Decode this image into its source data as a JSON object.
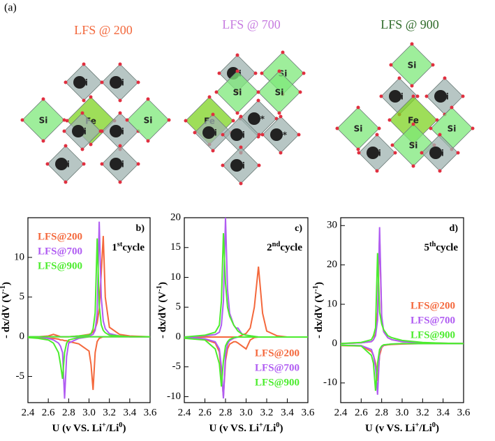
{
  "figure_label": "(a)",
  "structures": [
    {
      "title": "LFS @ 200",
      "atoms": [
        "Li",
        "Li",
        "Si",
        "Fe",
        "Li",
        "Li",
        "Si",
        "Li",
        "Li"
      ]
    },
    {
      "title": "LFS @ 700",
      "atoms": [
        "Li",
        "Si",
        "Si",
        "Si",
        "Fe",
        "Li*",
        "Li",
        "Li",
        "Li*",
        "Li"
      ]
    },
    {
      "title": "LFS @ 900",
      "atoms": [
        "Si",
        "Li",
        "Li",
        "Si",
        "Fe",
        "Si",
        "Si",
        "Li",
        "Li"
      ]
    }
  ],
  "chart_data": [
    {
      "type": "line",
      "panel": "b)",
      "annotation": [
        "1",
        "st",
        "cycle"
      ],
      "legend": "upper left",
      "xlabel": [
        "U (v VS. Li",
        "+",
        "/Li",
        "0",
        ")"
      ],
      "ylabel": [
        "- dx/dV (V",
        "-1",
        ")"
      ],
      "xlim": [
        2.4,
        3.6
      ],
      "xticks": [
        2.4,
        2.6,
        2.8,
        {
          "value": 3,
          "label": "3.0"
        },
        3.2,
        3.4,
        3.6
      ],
      "ylim": [
        -8.3,
        15
      ],
      "yticks": [
        -5,
        0,
        5,
        10
      ],
      "x": [
        2.4,
        2.5,
        2.6,
        2.65,
        2.7,
        2.72,
        2.74,
        2.76,
        2.78,
        2.8,
        2.9,
        3.0,
        3.02,
        3.04,
        3.06,
        3.08,
        3.1,
        3.12,
        3.14,
        3.16,
        3.2,
        3.3,
        3.4,
        3.6
      ],
      "series": [
        {
          "name": "LFS@200",
          "color": "#f4683c",
          "values": [
            0,
            0,
            0.1,
            0.3,
            0.1,
            0,
            0,
            0,
            0,
            0,
            0.1,
            0.3,
            0.4,
            0.6,
            1,
            1.8,
            3.5,
            8,
            12.7,
            5,
            1.2,
            0.3,
            0.1,
            0
          ],
          "discharge": [
            -0.1,
            -0.1,
            -0.2,
            -0.2,
            -0.3,
            -0.4,
            -0.4,
            -0.5,
            -0.5,
            -0.6,
            -0.9,
            -1.8,
            -3.5,
            -6.7,
            -2,
            -0.6,
            -0.2,
            -0.1,
            0,
            0,
            0,
            0,
            0,
            0
          ]
        },
        {
          "name": "LFS@700",
          "color": "#b05cf2",
          "values": [
            0,
            0,
            0,
            0,
            0,
            0,
            0,
            0,
            0,
            0,
            0,
            0.1,
            0.2,
            0.3,
            0.8,
            3,
            14.5,
            5,
            2,
            1,
            0.4,
            0.1,
            0,
            0
          ],
          "discharge": [
            0,
            0,
            -0.2,
            -0.4,
            -0.8,
            -1.2,
            -2,
            -7.8,
            -2.5,
            -0.8,
            -0.2,
            0,
            0,
            0,
            0,
            0,
            0,
            0,
            0,
            0,
            0,
            0,
            0,
            0
          ]
        },
        {
          "name": "LFS@900",
          "color": "#4cec2e",
          "values": [
            0,
            0,
            0,
            0,
            0,
            0,
            0,
            0,
            0,
            0,
            0.1,
            0.2,
            0.4,
            1,
            3,
            12.4,
            4,
            1.5,
            0.8,
            0.5,
            0.2,
            0.1,
            0,
            0
          ],
          "discharge": [
            -0.1,
            -0.2,
            -0.4,
            -0.8,
            -2,
            -3.5,
            -5.3,
            -2,
            -0.8,
            -0.4,
            -0.1,
            0,
            0,
            0,
            0,
            0,
            0,
            0,
            0,
            0,
            0,
            0,
            0,
            0
          ]
        }
      ]
    },
    {
      "type": "line",
      "panel": "c)",
      "annotation": [
        "2",
        "nd",
        "cycle"
      ],
      "legend": "lower right",
      "xlabel": [
        "U (v VS. Li",
        "+",
        "/Li",
        "0",
        ")"
      ],
      "ylabel": [
        "- dx/dV (V",
        "-1",
        ")"
      ],
      "xlim": [
        2.4,
        3.6
      ],
      "xticks": [
        2.4,
        2.6,
        2.8,
        {
          "value": 3,
          "label": "3.0"
        },
        3.2,
        3.4,
        3.6
      ],
      "ylim": [
        -11,
        20
      ],
      "yticks": [
        -10,
        -5,
        0,
        5,
        10,
        15,
        20
      ],
      "x": [
        2.4,
        2.6,
        2.7,
        2.74,
        2.76,
        2.78,
        2.8,
        2.82,
        2.84,
        2.88,
        2.9,
        2.92,
        2.96,
        3.0,
        3.04,
        3.08,
        3.12,
        3.16,
        3.2,
        3.3,
        3.4,
        3.6
      ],
      "series": [
        {
          "name": "LFS@200",
          "color": "#f4683c",
          "values": [
            0,
            0,
            0,
            0,
            0,
            0,
            0,
            0,
            0,
            0,
            0,
            0,
            0.3,
            0.6,
            1.5,
            5,
            11.8,
            4,
            1,
            0.2,
            0,
            0
          ],
          "discharge": [
            -0.2,
            -0.4,
            -1,
            -2.5,
            -6,
            -10,
            -4,
            -2,
            -1.2,
            -0.8,
            -0.8,
            -1,
            -1.5,
            -2,
            -0.5,
            -0.1,
            0,
            0,
            0,
            0,
            0,
            0
          ]
        },
        {
          "name": "LFS@700",
          "color": "#b05cf2",
          "values": [
            0,
            0.2,
            0.4,
            0.8,
            2,
            6,
            20,
            8,
            4,
            2,
            1.5,
            1.5,
            0.5,
            0.3,
            0.2,
            0.1,
            0,
            0,
            0,
            0,
            0,
            0
          ],
          "discharge": [
            0,
            -0.3,
            -0.8,
            -2,
            -5,
            -10.3,
            -3,
            -1.2,
            -0.6,
            -0.2,
            -0.1,
            0,
            0,
            0,
            0,
            0,
            0,
            0,
            0,
            0,
            0,
            0
          ]
        },
        {
          "name": "LFS@900",
          "color": "#4cec2e",
          "values": [
            0,
            0.3,
            0.8,
            2,
            6,
            17.4,
            9,
            5,
            3.5,
            2,
            1.5,
            1,
            0.5,
            0.3,
            0.2,
            0.1,
            0,
            0,
            0,
            0,
            0,
            0
          ],
          "discharge": [
            -0.2,
            -0.5,
            -2,
            -4.5,
            -8.3,
            -4,
            -1.5,
            -0.8,
            -0.4,
            -0.1,
            0,
            0,
            0,
            0,
            0,
            0,
            0,
            0,
            0,
            0,
            0,
            0
          ]
        }
      ]
    },
    {
      "type": "line",
      "panel": "d)",
      "annotation": [
        "5",
        "th",
        "cycle"
      ],
      "legend": "center right",
      "xlabel": [
        "U (v VS. Li",
        "+",
        "/Li",
        "0",
        ")"
      ],
      "ylabel": [
        "- dx/dV (V",
        "-1",
        ")"
      ],
      "xlim": [
        2.4,
        3.6
      ],
      "xticks": [
        2.4,
        2.6,
        2.8,
        {
          "value": 3,
          "label": "3.0"
        },
        3.2,
        3.4,
        3.6
      ],
      "ylim": [
        -15,
        32
      ],
      "yticks": [
        -10,
        0,
        10,
        20,
        30
      ],
      "x": [
        2.4,
        2.6,
        2.7,
        2.72,
        2.74,
        2.76,
        2.78,
        2.8,
        2.82,
        2.86,
        2.9,
        3.0,
        3.2,
        3.4,
        3.6
      ],
      "series": [
        {
          "name": "LFS@200",
          "color": "#f4683c",
          "values": [
            0,
            0.2,
            0.5,
            1,
            2.5,
            8,
            27.7,
            6,
            3,
            1.5,
            1,
            0.5,
            0.2,
            0.1,
            0
          ],
          "discharge": [
            -0.5,
            -0.6,
            -2,
            -3,
            -5,
            -9.5,
            -3,
            -1,
            -0.5,
            -0.3,
            -0.2,
            -0.1,
            0,
            0,
            0
          ]
        },
        {
          "name": "LFS@700",
          "color": "#b05cf2",
          "values": [
            0,
            0.2,
            0.5,
            1,
            2,
            6,
            29.6,
            7,
            3,
            1.5,
            1,
            0.5,
            0.2,
            0.1,
            0
          ],
          "discharge": [
            -0.4,
            -0.5,
            -1.5,
            -3,
            -6,
            -13,
            -2,
            -0.8,
            -0.4,
            -0.2,
            -0.1,
            0,
            0,
            0,
            0
          ]
        },
        {
          "name": "LFS@900",
          "color": "#4cec2e",
          "values": [
            0,
            0.3,
            1,
            2,
            4,
            23,
            8,
            5,
            3.5,
            2,
            1.5,
            0.8,
            0.3,
            0.1,
            0
          ],
          "discharge": [
            -0.4,
            -0.6,
            -3,
            -5,
            -12,
            -5,
            -1.5,
            -0.6,
            -0.3,
            -0.2,
            -0.1,
            0,
            0,
            0,
            0
          ]
        }
      ]
    }
  ]
}
